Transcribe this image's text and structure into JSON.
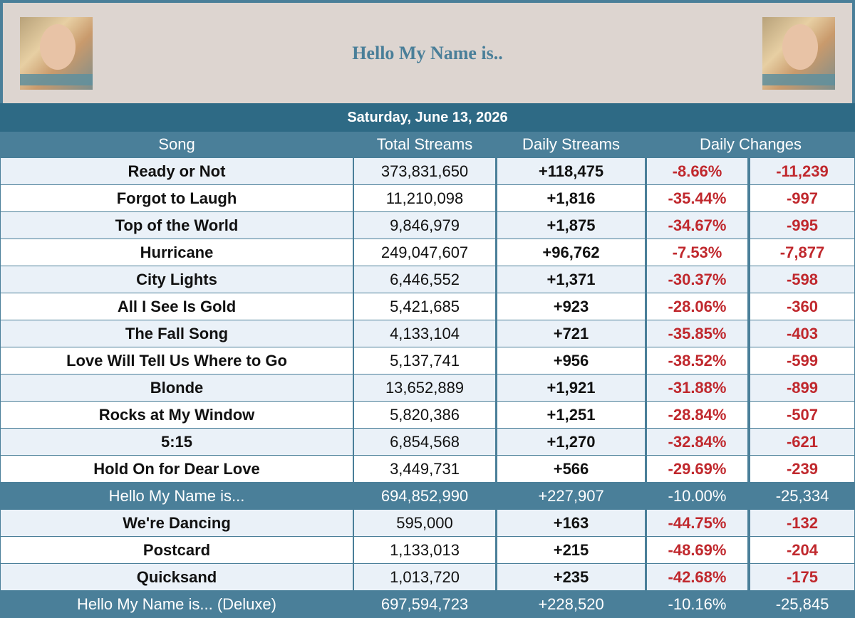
{
  "header": {
    "title": "Hello My Name is..",
    "date": "Saturday, June 13, 2026"
  },
  "table": {
    "columns": [
      "Song",
      "Total Streams",
      "Daily Streams",
      "Daily Changes"
    ],
    "rows": [
      [
        "Ready or Not",
        "373,831,650",
        "+118,475",
        "-8.66%",
        "-11,239"
      ],
      [
        "Forgot to Laugh",
        "11,210,098",
        "+1,816",
        "-35.44%",
        "-997"
      ],
      [
        "Top of the World",
        "9,846,979",
        "+1,875",
        "-34.67%",
        "-995"
      ],
      [
        "Hurricane",
        "249,047,607",
        "+96,762",
        "-7.53%",
        "-7,877"
      ],
      [
        "City Lights",
        "6,446,552",
        "+1,371",
        "-30.37%",
        "-598"
      ],
      [
        "All I See Is Gold",
        "5,421,685",
        "+923",
        "-28.06%",
        "-360"
      ],
      [
        "The Fall Song",
        "4,133,104",
        "+721",
        "-35.85%",
        "-403"
      ],
      [
        "Love Will Tell Us Where to Go",
        "5,137,741",
        "+956",
        "-38.52%",
        "-599"
      ],
      [
        "Blonde",
        "13,652,889",
        "+1,921",
        "-31.88%",
        "-899"
      ],
      [
        "Rocks at My Window",
        "5,820,386",
        "+1,251",
        "-28.84%",
        "-507"
      ],
      [
        "5:15",
        "6,854,568",
        "+1,270",
        "-32.84%",
        "-621"
      ],
      [
        "Hold On for Dear Love",
        "3,449,731",
        "+566",
        "-29.69%",
        "-239"
      ]
    ],
    "subtotal": [
      "Hello My Name is...",
      "694,852,990",
      "+227,907",
      "-10.00%",
      "-25,334"
    ],
    "deluxe_rows": [
      [
        "We're Dancing",
        "595,000",
        "+163",
        "-44.75%",
        "-132"
      ],
      [
        "Postcard",
        "1,133,013",
        "+215",
        "-48.69%",
        "-204"
      ],
      [
        "Quicksand",
        "1,013,720",
        "+235",
        "-42.68%",
        "-175"
      ]
    ],
    "total": [
      "Hello My Name is... (Deluxe)",
      "697,594,723",
      "+228,520",
      "-10.16%",
      "-25,845"
    ]
  }
}
